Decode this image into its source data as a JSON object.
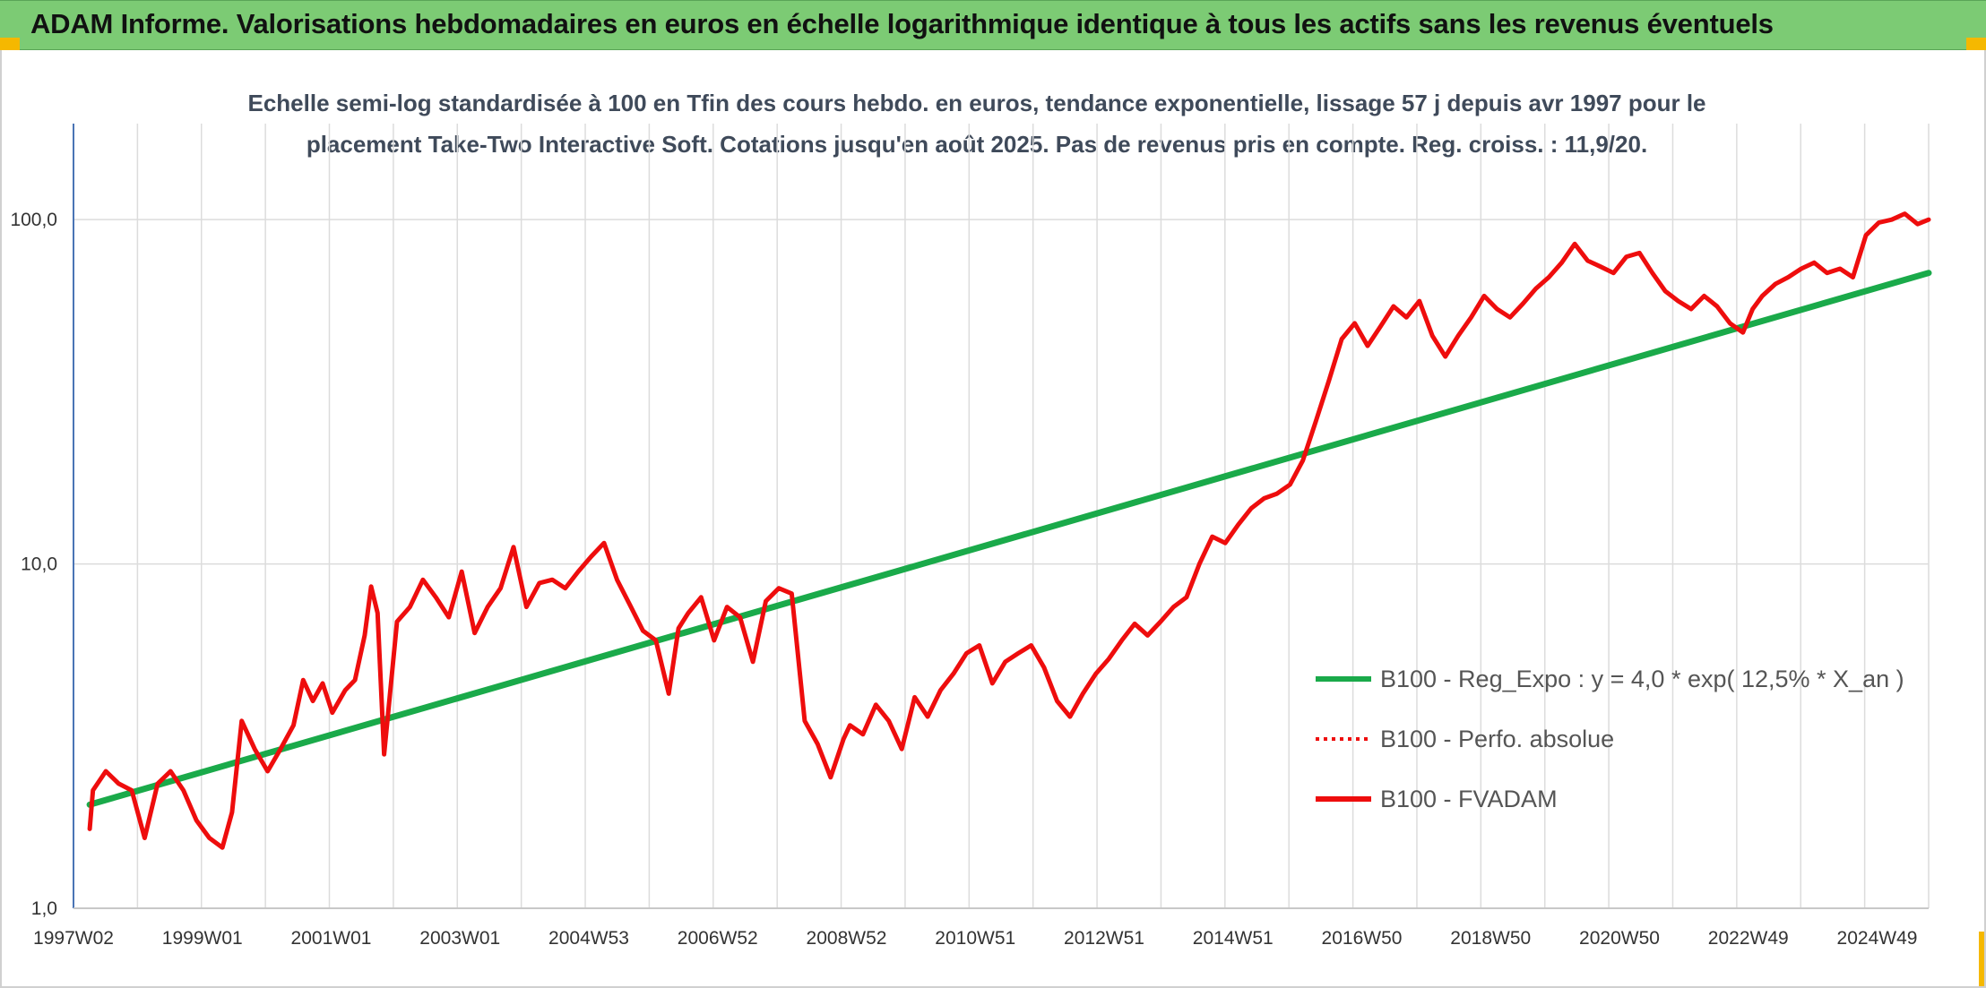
{
  "header": {
    "title": "ADAM Informe. Valorisations hebdomadaires en euros en échelle logarithmique identique à tous les actifs sans les revenus éventuels"
  },
  "colors": {
    "banner": "#7ccb74",
    "accent": "#f5b800",
    "trend": "#1aaa4a",
    "fvadam": "#ee0d0d",
    "grid": "#dcdcdc"
  },
  "chart_data": {
    "type": "line",
    "title": "Echelle semi-log standardisée à 100 en Tfin des cours hebdo. en euros, tendance exponentielle, lissage 57 j depuis avr 1997 pour le placement Take-Two Interactive Soft. Cotations jusqu'en août 2025. Pas de revenus pris en compte. Reg. croiss. : 11,9/20.",
    "y_scale": "log",
    "ylim": [
      1,
      190
    ],
    "y_ticks": [
      "1,0",
      "10,0",
      "100,0"
    ],
    "y_tick_values": [
      1,
      10,
      100
    ],
    "xlim": [
      1997.0,
      2025.67
    ],
    "x_ticks": [
      "1997W02",
      "1999W01",
      "2001W01",
      "2003W01",
      "2004W53",
      "2006W52",
      "2008W52",
      "2010W51",
      "2012W51",
      "2014W51",
      "2016W50",
      "2018W50",
      "2020W50",
      "2022W49",
      "2024W49"
    ],
    "grid": true,
    "legend_position": "right-middle",
    "series": [
      {
        "name": "B100 - Reg_Expo : y = 4,0 * exp( 12,5% *  X_an )",
        "style": "solid",
        "color": "#1aaa4a",
        "x": [
          1997.25,
          2025.67
        ],
        "y": [
          2.0,
          70.0
        ]
      },
      {
        "name": "B100 - Perfo. absolue",
        "style": "dotted",
        "color": "#ee0d0d",
        "x": [],
        "y": []
      },
      {
        "name": "B100 - FVADAM",
        "style": "solid",
        "color": "#ee0d0d",
        "x": [
          1997.25,
          1997.3,
          1997.5,
          1997.7,
          1997.9,
          1998.1,
          1998.3,
          1998.5,
          1998.7,
          1998.9,
          1999.1,
          1999.3,
          1999.45,
          1999.6,
          1999.8,
          2000.0,
          2000.2,
          2000.4,
          2000.55,
          2000.7,
          2000.85,
          2001.0,
          2001.2,
          2001.35,
          2001.5,
          2001.6,
          2001.7,
          2001.8,
          2002.0,
          2002.2,
          2002.4,
          2002.6,
          2002.8,
          2003.0,
          2003.2,
          2003.4,
          2003.6,
          2003.8,
          2004.0,
          2004.2,
          2004.4,
          2004.6,
          2004.8,
          2005.0,
          2005.2,
          2005.4,
          2005.6,
          2005.8,
          2006.0,
          2006.2,
          2006.35,
          2006.5,
          2006.7,
          2006.9,
          2007.1,
          2007.3,
          2007.5,
          2007.7,
          2007.9,
          2008.1,
          2008.3,
          2008.5,
          2008.7,
          2008.9,
          2009.0,
          2009.2,
          2009.4,
          2009.6,
          2009.8,
          2010.0,
          2010.2,
          2010.4,
          2010.6,
          2010.8,
          2011.0,
          2011.2,
          2011.4,
          2011.6,
          2011.8,
          2012.0,
          2012.2,
          2012.4,
          2012.6,
          2012.8,
          2013.0,
          2013.2,
          2013.4,
          2013.6,
          2013.8,
          2014.0,
          2014.2,
          2014.4,
          2014.6,
          2014.8,
          2015.0,
          2015.2,
          2015.4,
          2015.6,
          2015.8,
          2016.0,
          2016.2,
          2016.4,
          2016.6,
          2016.8,
          2017.0,
          2017.2,
          2017.4,
          2017.6,
          2017.8,
          2018.0,
          2018.2,
          2018.4,
          2018.6,
          2018.8,
          2019.0,
          2019.2,
          2019.4,
          2019.6,
          2019.8,
          2020.0,
          2020.2,
          2020.4,
          2020.6,
          2020.8,
          2021.0,
          2021.2,
          2021.4,
          2021.6,
          2021.8,
          2022.0,
          2022.2,
          2022.4,
          2022.6,
          2022.8,
          2022.95,
          2023.1,
          2023.3,
          2023.5,
          2023.7,
          2023.9,
          2024.1,
          2024.3,
          2024.5,
          2024.7,
          2024.9,
          2025.1,
          2025.3,
          2025.5,
          2025.67
        ],
        "y": [
          1.7,
          2.2,
          2.5,
          2.3,
          2.2,
          1.6,
          2.3,
          2.5,
          2.2,
          1.8,
          1.6,
          1.5,
          1.9,
          3.5,
          2.9,
          2.5,
          2.9,
          3.4,
          4.6,
          4.0,
          4.5,
          3.7,
          4.3,
          4.6,
          6.2,
          8.6,
          7.2,
          2.8,
          6.8,
          7.5,
          9.0,
          8.0,
          7.0,
          9.5,
          6.3,
          7.5,
          8.5,
          11.2,
          7.5,
          8.8,
          9.0,
          8.5,
          9.5,
          10.5,
          11.5,
          9.0,
          7.6,
          6.4,
          6.0,
          4.2,
          6.5,
          7.2,
          8.0,
          6.0,
          7.5,
          7.0,
          5.2,
          7.8,
          8.5,
          8.2,
          3.5,
          3.0,
          2.4,
          3.1,
          3.4,
          3.2,
          3.9,
          3.5,
          2.9,
          4.1,
          3.6,
          4.3,
          4.8,
          5.5,
          5.8,
          4.5,
          5.2,
          5.5,
          5.8,
          5.0,
          4.0,
          3.6,
          4.2,
          4.8,
          5.3,
          6.0,
          6.7,
          6.2,
          6.8,
          7.5,
          8.0,
          10.0,
          12.0,
          11.5,
          13.0,
          14.5,
          15.5,
          16.0,
          17.0,
          20.0,
          26.0,
          34.0,
          45.0,
          50.0,
          43.0,
          49.0,
          56.0,
          52.0,
          58.0,
          46.0,
          40.0,
          46.0,
          52.0,
          60.0,
          55.0,
          52.0,
          57.0,
          63.0,
          68.0,
          75.0,
          85.0,
          76.0,
          73.0,
          70.0,
          78.0,
          80.0,
          70.0,
          62.0,
          58.0,
          55.0,
          60.0,
          56.0,
          50.0,
          47.0,
          55.0,
          60.0,
          65.0,
          68.0,
          72.0,
          75.0,
          70.0,
          72.0,
          68.0,
          90.0,
          98.0,
          100.0,
          104.0,
          97.0,
          100.0
        ]
      }
    ]
  }
}
